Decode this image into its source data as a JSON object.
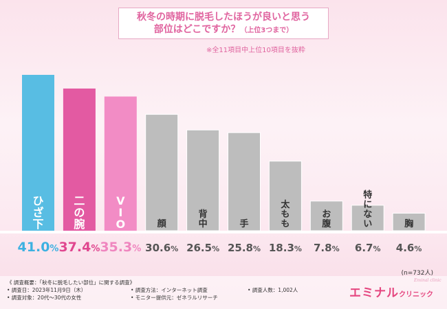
{
  "title": {
    "line1": "秋冬の時期に脱毛したほうが良いと思う",
    "line2": "部位はどこですか？",
    "line2_suffix": "（上位3つまで）"
  },
  "note": "※全11項目中上位10項目を抜粋",
  "sample_size": "(n=732人)",
  "chart_data": {
    "type": "bar",
    "title": "秋冬の時期に脱毛したほうが良いと思う部位はどこですか？（上位3つまで）",
    "categories": [
      "ひざ下",
      "二の腕",
      "VIO",
      "顔",
      "背中",
      "手",
      "太もも",
      "お腹",
      "特にない",
      "胸"
    ],
    "values": [
      41.0,
      37.4,
      35.3,
      30.6,
      26.5,
      25.8,
      18.3,
      7.8,
      6.7,
      4.6
    ],
    "value_labels": [
      "41.0%",
      "37.4%",
      "35.3%",
      "30.6%",
      "26.5%",
      "25.8%",
      "18.3%",
      "7.8%",
      "6.7%",
      "4.6%"
    ],
    "unit": "%",
    "ylim": [
      0,
      45
    ],
    "colors": [
      "#58bde3",
      "#e35aa2",
      "#f28cc5",
      "#bdbdbd",
      "#bdbdbd",
      "#bdbdbd",
      "#bdbdbd",
      "#bdbdbd",
      "#bdbdbd",
      "#bdbdbd"
    ],
    "label_colors": [
      "#3db1e1",
      "#e0478f",
      "#ef86bf",
      "#555555",
      "#555555",
      "#555555",
      "#555555",
      "#555555",
      "#555555",
      "#555555"
    ]
  },
  "footer": {
    "heading": "《 調査概要：「秋冬に脱毛したい部位」に関する調査》",
    "date": "• 調査日：2023年11月9日（木）",
    "target": "• 調査対象：20代〜30代の女性",
    "method": "• 調査方法：インターネット調査",
    "provider": "• モニター提供元：ゼネラルリサーチ",
    "count": "• 調査人数：1,002人"
  },
  "logo": {
    "main": "エミナル",
    "sub": "クリニック",
    "tagline": "Eminal clinic"
  }
}
